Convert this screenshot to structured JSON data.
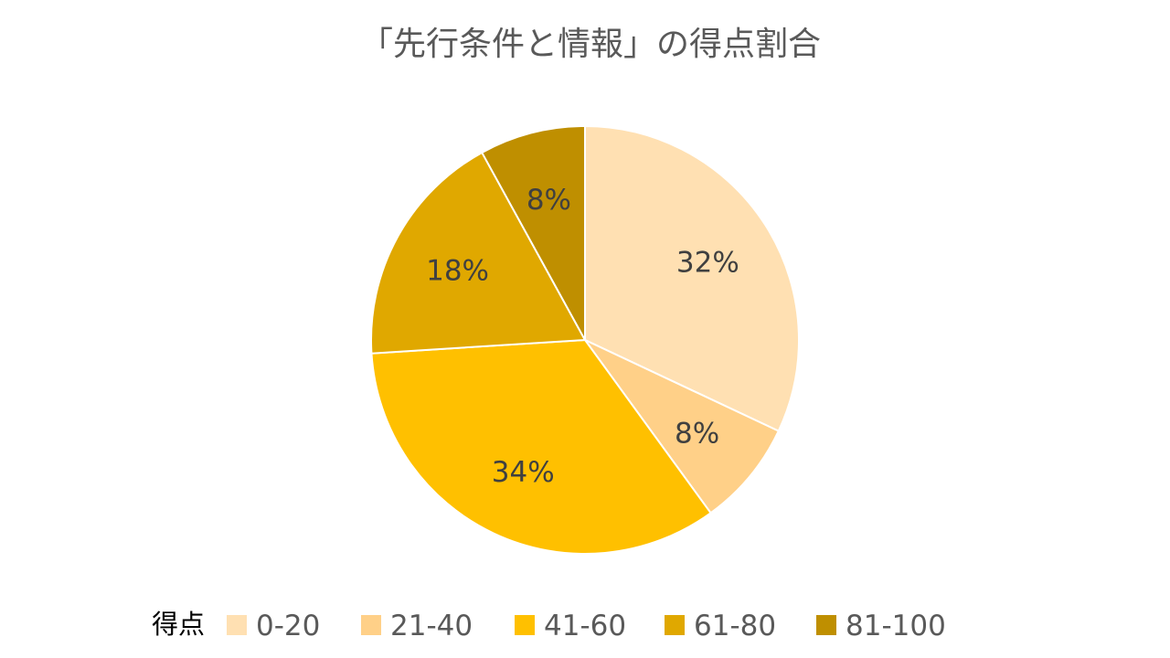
{
  "chart_data": {
    "type": "pie",
    "title": "「先行条件と情報」の得点割合",
    "legend_title": "得点",
    "legend_position": "bottom",
    "categories": [
      "0-20",
      "21-40",
      "41-60",
      "61-80",
      "81-100"
    ],
    "values": [
      32,
      8,
      34,
      18,
      8
    ],
    "value_labels": [
      "32%",
      "8%",
      "34%",
      "18%",
      "8%"
    ],
    "colors": [
      "#FFE0B2",
      "#FFD088",
      "#FFC000",
      "#E0A800",
      "#BF8F00"
    ]
  }
}
